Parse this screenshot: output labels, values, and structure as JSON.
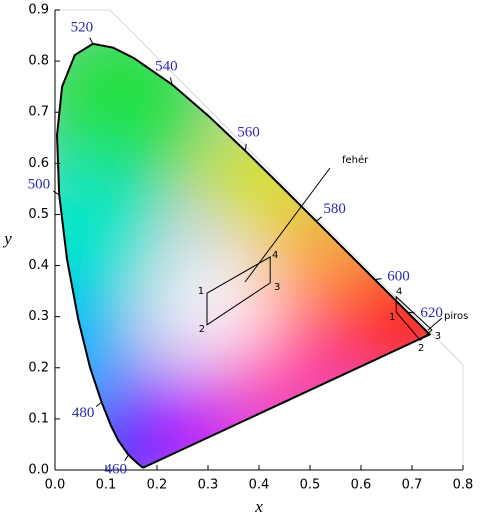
{
  "chart_data": {
    "type": "chromaticity",
    "xlabel": "x",
    "ylabel": "y",
    "xlim": [
      0,
      0.8
    ],
    "ylim": [
      0,
      0.9
    ],
    "xticks": [
      {
        "value": 0,
        "label": "0.0"
      },
      0.1,
      0.2,
      0.3,
      0.4,
      0.5,
      0.6,
      0.7,
      0.8
    ],
    "yticks": [
      {
        "value": 0,
        "label": "0.0"
      },
      0.1,
      0.2,
      0.3,
      0.4,
      0.5,
      0.6,
      0.7,
      0.8,
      0.9
    ],
    "locus_color": "#000000",
    "wavelength_label_color": "#2a2ab0",
    "locus": {
      "wavelengths": [
        null,
        null,
        null,
        null,
        460,
        null,
        null,
        480,
        null,
        null,
        null,
        500,
        null,
        null,
        null,
        520,
        null,
        null,
        540,
        null,
        560,
        null,
        580,
        null,
        600,
        null,
        620,
        null,
        null
      ],
      "x": [
        0.1741,
        0.1714,
        0.1644,
        0.1566,
        0.144,
        0.1241,
        0.1096,
        0.0913,
        0.0687,
        0.0454,
        0.0235,
        0.0082,
        0.0039,
        0.0139,
        0.0389,
        0.0743,
        0.1142,
        0.1547,
        0.2296,
        0.3016,
        0.3731,
        0.4441,
        0.5125,
        0.5752,
        0.627,
        0.6658,
        0.6915,
        0.719,
        0.7347
      ],
      "y": [
        0.005,
        0.0051,
        0.0109,
        0.0177,
        0.0297,
        0.0578,
        0.0868,
        0.1327,
        0.2007,
        0.295,
        0.4127,
        0.5384,
        0.6548,
        0.7502,
        0.812,
        0.8338,
        0.8262,
        0.8059,
        0.7543,
        0.6923,
        0.6245,
        0.5547,
        0.4866,
        0.4242,
        0.3725,
        0.334,
        0.3083,
        0.2809,
        0.2653
      ]
    },
    "regions": [
      {
        "name": "fehér",
        "corners": [
          1,
          2,
          3,
          4
        ],
        "x": [
          0.298,
          0.298,
          0.422,
          0.422
        ],
        "y": [
          0.346,
          0.284,
          0.366,
          0.417
        ]
      },
      {
        "name": "piros",
        "corners": [
          1,
          2,
          3,
          4
        ],
        "x": [
          0.669,
          0.716,
          0.739,
          0.669
        ],
        "y": [
          0.309,
          0.254,
          0.274,
          0.339
        ]
      }
    ]
  }
}
